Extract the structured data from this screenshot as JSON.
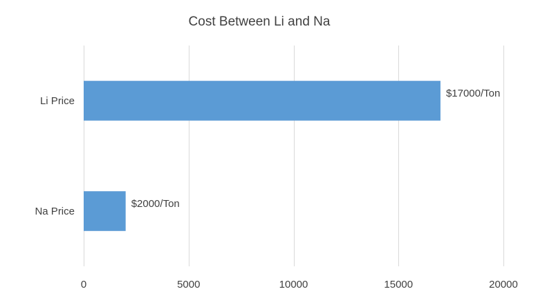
{
  "chart_data": {
    "type": "bar",
    "orientation": "horizontal",
    "title": "Cost Between Li and Na",
    "categories": [
      "Li Price",
      "Na Price"
    ],
    "series": [
      {
        "values": [
          17000,
          2000
        ],
        "color": "#5b9bd5"
      }
    ],
    "data_labels": [
      "$17000/Ton",
      "$2000/Ton"
    ],
    "xlim": [
      0,
      20000
    ],
    "x_ticks": [
      "0",
      "5000",
      "10000",
      "15000",
      "20000"
    ],
    "xlabel": "",
    "ylabel": "",
    "grid": "vertical",
    "legend": "none"
  }
}
